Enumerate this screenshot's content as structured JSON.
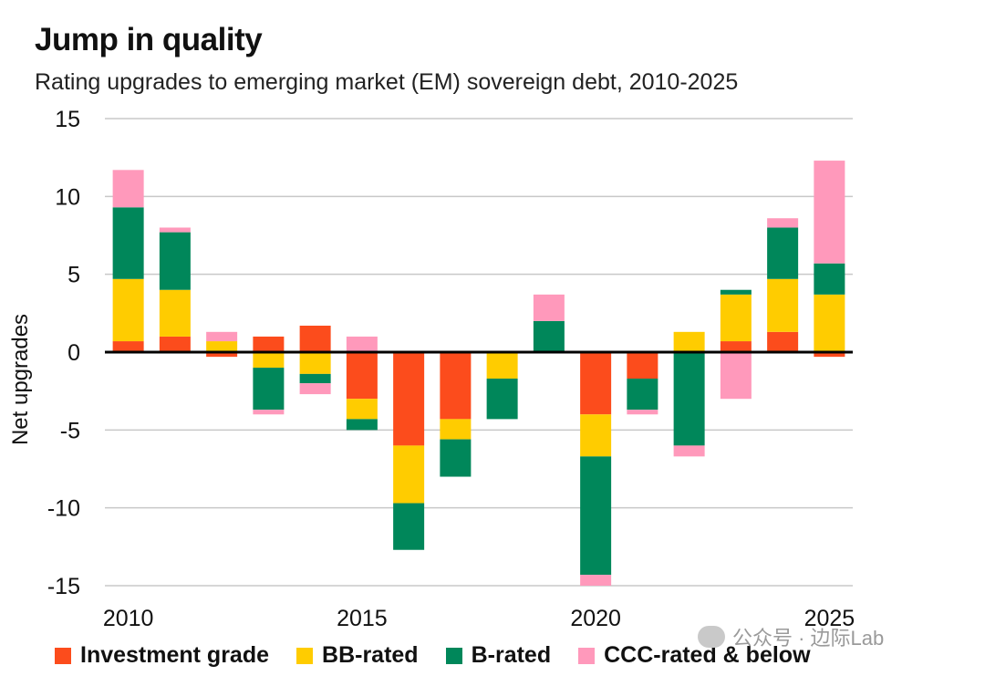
{
  "header": {
    "title": "Jump in quality",
    "subtitle": "Rating upgrades to emerging market (EM) sovereign debt, 2010-2025"
  },
  "watermark": {
    "text": "公众号 · 边际Lab"
  },
  "chart_data": {
    "type": "bar",
    "stacked": true,
    "title": "Jump in quality",
    "subtitle": "Rating upgrades to emerging market (EM) sovereign debt, 2010-2025",
    "xlabel": "",
    "ylabel": "Net upgrades",
    "ylim": [
      -15,
      15
    ],
    "yticks": [
      15,
      10,
      5,
      0,
      -5,
      -10,
      -15
    ],
    "ytick_labels": [
      "15",
      "10",
      "5",
      "0",
      "-5",
      "-10",
      "-15"
    ],
    "x_tick_labels": [
      "2010",
      "2015",
      "2020",
      "2025"
    ],
    "x_tick_years": [
      2010,
      2015,
      2020,
      2025
    ],
    "grid": true,
    "legend_position": "bottom",
    "categories": [
      2010,
      2011,
      2012,
      2013,
      2014,
      2015,
      2016,
      2017,
      2018,
      2019,
      2020,
      2021,
      2022,
      2023,
      2024,
      2025
    ],
    "series": [
      {
        "name": "Investment grade",
        "color": "#fc4c1c",
        "values": [
          0.7,
          1.0,
          -0.3,
          1.0,
          1.7,
          -3.0,
          -6.0,
          -4.3,
          0.0,
          0.0,
          -4.0,
          -1.7,
          0.0,
          0.7,
          1.3,
          -0.3
        ]
      },
      {
        "name": "BB-rated",
        "color": "#ffcc00",
        "values": [
          4.0,
          3.0,
          0.7,
          -1.0,
          -1.4,
          -1.3,
          -3.7,
          -1.3,
          -1.7,
          0.0,
          -2.7,
          0.0,
          1.3,
          3.0,
          3.4,
          3.7
        ]
      },
      {
        "name": "B-rated",
        "color": "#00875a",
        "values": [
          4.6,
          3.7,
          0.0,
          -2.7,
          -0.6,
          -0.7,
          -3.0,
          -2.4,
          -2.6,
          2.0,
          -7.6,
          -2.0,
          -6.0,
          0.3,
          3.3,
          2.0
        ]
      },
      {
        "name": "CCC-rated & below",
        "color": "#ff99bb",
        "values": [
          2.4,
          0.3,
          0.6,
          -0.3,
          -0.7,
          1.0,
          0.0,
          0.0,
          0.0,
          1.7,
          -0.7,
          -0.3,
          -0.7,
          -3.0,
          0.6,
          6.6
        ]
      }
    ]
  }
}
